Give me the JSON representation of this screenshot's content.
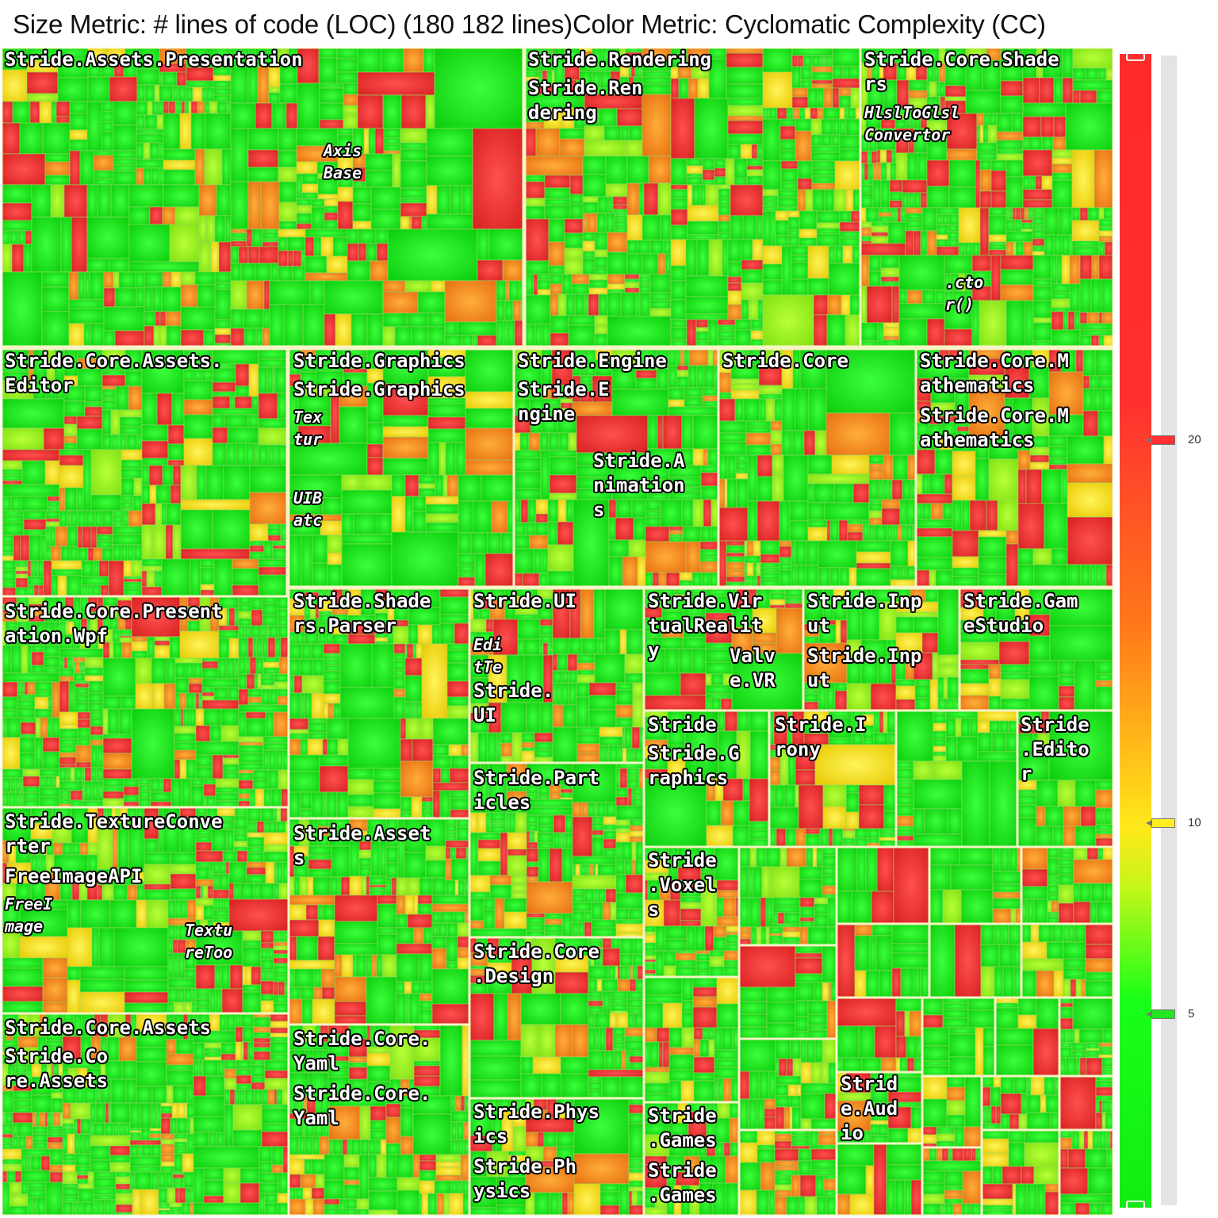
{
  "header": {
    "size_metric": "Size Metric: # lines of code (LOC) (180 182 lines)",
    "color_metric": "Color Metric: Cyclomatic Complexity (CC)"
  },
  "colors": {
    "low": "#14e614",
    "mid": "#ffee22",
    "high": "#f03a3a",
    "border": "#f7f4c6"
  },
  "color_scale": {
    "ticks": [
      {
        "value": "20",
        "color": "#ff3030"
      },
      {
        "value": "10",
        "color": "#ffee22"
      },
      {
        "value": "5",
        "color": "#22e622"
      }
    ]
  },
  "modules": [
    {
      "name": "Stride.Assets.Presentation",
      "labels": [
        "Stride.Assets.Presentation"
      ],
      "sub": [
        "Axis\nBase"
      ]
    },
    {
      "name": "Stride.Rendering",
      "labels": [
        "Stride.Rendering",
        "Stride.Ren\ndering"
      ],
      "sub": []
    },
    {
      "name": "Stride.Core.Shaders",
      "labels": [
        "Stride.Core.Shade\nrs"
      ],
      "sub": [
        "HlslToGlsl\nConvertor",
        ".cto\nr()"
      ]
    },
    {
      "name": "Stride.Core.Assets.Editor",
      "labels": [
        "Stride.Core.Assets.\nEditor"
      ],
      "sub": []
    },
    {
      "name": "Stride.Graphics",
      "labels": [
        "Stride.Graphics",
        "Stride.Graphics"
      ],
      "sub": [
        "Tex\ntur",
        "UIB\natc"
      ]
    },
    {
      "name": "Stride.Engine",
      "labels": [
        "Stride.Engine",
        "Stride.E\nngine",
        "Stride.A\nnimation\ns"
      ],
      "sub": []
    },
    {
      "name": "Stride.Core",
      "labels": [
        "Stride.Core"
      ],
      "sub": []
    },
    {
      "name": "Stride.Core.Mathematics",
      "labels": [
        "Stride.Core.M\nathematics",
        "Stride.Core.M\nathematics"
      ],
      "sub": []
    },
    {
      "name": "Stride.Core.Presentation.Wpf",
      "labels": [
        "Stride.Core.Present\nation.Wpf"
      ],
      "sub": []
    },
    {
      "name": "Stride.Shaders.Parser",
      "labels": [
        "Stride.Shade\nrs.Parser"
      ],
      "sub": []
    },
    {
      "name": "Stride.UI",
      "labels": [
        "Stride.UI",
        "Stride.\nUI"
      ],
      "sub": [
        "Edi\ntTe"
      ]
    },
    {
      "name": "Stride.VirtualReality",
      "labels": [
        "Stride.Vir\ntualRealit\ny",
        "Valv\ne.VR"
      ],
      "sub": []
    },
    {
      "name": "Stride.Input",
      "labels": [
        "Stride.Inp\nut",
        "Stride.Inp\nut"
      ],
      "sub": []
    },
    {
      "name": "Stride.GameStudio",
      "labels": [
        "Stride.Gam\neStudio"
      ],
      "sub": []
    },
    {
      "name": "Stride.TextureConverter",
      "labels": [
        "Stride.TextureConve\nrter",
        "FreeImageAPI"
      ],
      "sub": [
        "FreeI\nmage",
        "Textu\nreToo"
      ]
    },
    {
      "name": "Stride.Assets",
      "labels": [
        "Stride.Asset\ns"
      ],
      "sub": []
    },
    {
      "name": "Stride.Particles",
      "labels": [
        "Stride.Part\nicles"
      ],
      "sub": []
    },
    {
      "name": "Stride",
      "labels": [
        "Stride",
        "Stride.G\nraphics"
      ],
      "sub": []
    },
    {
      "name": "Stride.Irony",
      "labels": [
        "Stride.I\nrony"
      ],
      "sub": []
    },
    {
      "name": "Stride.Editor",
      "labels": [
        "Stride\n.Edito\nr"
      ],
      "sub": []
    },
    {
      "name": "Stride.Voxels",
      "labels": [
        "Stride\n.Voxel\ns"
      ],
      "sub": []
    },
    {
      "name": "Stride.Core.Design",
      "labels": [
        "Stride.Core\n.Design"
      ],
      "sub": []
    },
    {
      "name": "Stride.Core.Assets",
      "labels": [
        "Stride.Core.Assets",
        "Stride.Co\nre.Assets"
      ],
      "sub": []
    },
    {
      "name": "Stride.Core.Yaml",
      "labels": [
        "Stride.Core.\nYaml",
        "Stride.Core.\nYaml"
      ],
      "sub": []
    },
    {
      "name": "Stride.Audio",
      "labels": [
        "Strid\ne.Aud\nio"
      ],
      "sub": []
    },
    {
      "name": "Stride.Physics",
      "labels": [
        "Stride.Phys\nics",
        "Stride.Ph\nysics"
      ],
      "sub": []
    },
    {
      "name": "Stride.Games",
      "labels": [
        "Stride\n.Games",
        "Stride\n.Games"
      ],
      "sub": []
    }
  ]
}
